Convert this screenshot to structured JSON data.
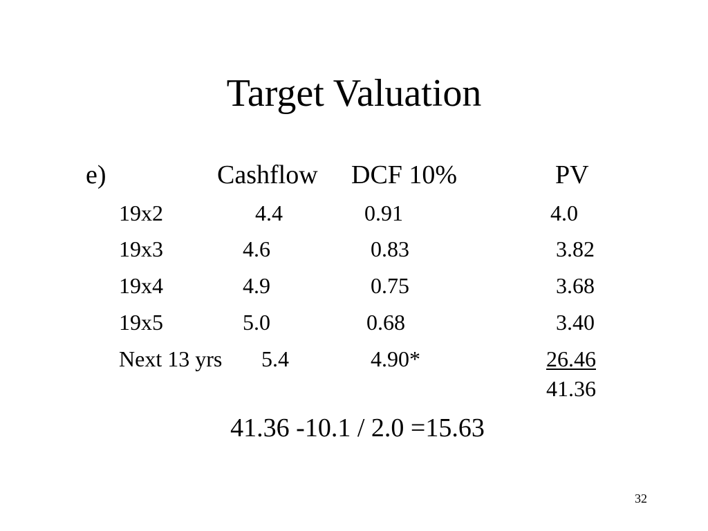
{
  "title": "Target Valuation",
  "header": {
    "label": "e)",
    "col1": "Cashflow",
    "col2": "DCF 10%",
    "col3": "PV"
  },
  "rows": [
    {
      "year": "19x2",
      "cashflow": "4.4",
      "dcf": "0.91",
      "pv": "4.0"
    },
    {
      "year": "19x3",
      "cashflow": "4.6",
      "dcf": "0.83",
      "pv": "3.82"
    },
    {
      "year": "19x4",
      "cashflow": "4.9",
      "dcf": "0.75",
      "pv": "3.68"
    },
    {
      "year": "19x5",
      "cashflow": "5.0",
      "dcf": "0.68",
      "pv": "3.40"
    },
    {
      "year": "Next 13 yrs",
      "cashflow": "5.4",
      "dcf": "4.90*",
      "pv": "26.46"
    }
  ],
  "total": "41.36",
  "formula": "41.36 -10.1 / 2.0  =15.63",
  "page_number": "32"
}
